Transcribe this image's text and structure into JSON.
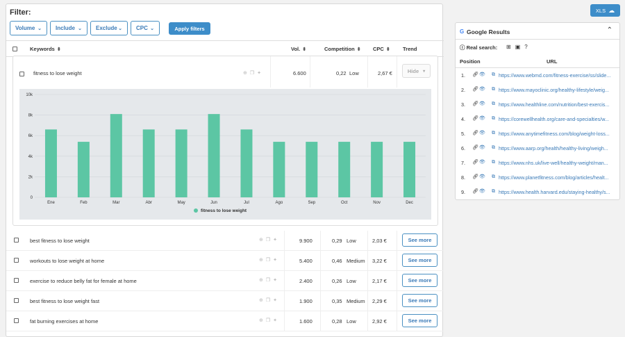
{
  "filter": {
    "title": "Filter:",
    "buttons": [
      "Volume",
      "Include",
      "Exclude",
      "CPC"
    ],
    "apply": "Apply filters"
  },
  "table": {
    "headers": {
      "keywords": "Keywords",
      "vol": "Vol.",
      "competition": "Competition",
      "cpc": "CPC",
      "trend": "Trend"
    }
  },
  "expanded": {
    "keyword": "fitness to lose weight",
    "vol": "6.600",
    "comp_value": "0,22",
    "comp_level": "Low",
    "cpc": "2,67 €",
    "hide": "Hide"
  },
  "chart_data": {
    "type": "bar",
    "categories": [
      "Ene",
      "Feb",
      "Mar",
      "Abr",
      "May",
      "Jun",
      "Jul",
      "Ago",
      "Sep",
      "Oct",
      "Nov",
      "Dec"
    ],
    "series": [
      {
        "name": "fitness to lose weight",
        "values": [
          6600,
          5400,
          8100,
          6600,
          6600,
          8100,
          6600,
          5400,
          5400,
          5400,
          5400,
          5400
        ]
      }
    ],
    "yticks": [
      "10k",
      "8k",
      "6k",
      "4k",
      "2k",
      "0"
    ],
    "ylim": [
      0,
      10000
    ],
    "legend": "bottom",
    "color": "#5cc6a4"
  },
  "rows": [
    {
      "keyword": "best fitness to lose weight",
      "vol": "9.900",
      "comp_value": "0,29",
      "comp_level": "Low",
      "cpc": "2,03 €",
      "action": "See more"
    },
    {
      "keyword": "workouts to lose weight at home",
      "vol": "5.400",
      "comp_value": "0,46",
      "comp_level": "Medium",
      "cpc": "3,22 €",
      "action": "See more"
    },
    {
      "keyword": "exercise to reduce belly fat for female at home",
      "vol": "2.400",
      "comp_value": "0,26",
      "comp_level": "Low",
      "cpc": "2,17 €",
      "action": "See more"
    },
    {
      "keyword": "best fitness to lose weight fast",
      "vol": "1.900",
      "comp_value": "0,35",
      "comp_level": "Medium",
      "cpc": "2,29 €",
      "action": "See more"
    },
    {
      "keyword": "fat burning exercises at home",
      "vol": "1.600",
      "comp_value": "0,28",
      "comp_level": "Low",
      "cpc": "2,92 €",
      "action": "See more"
    }
  ],
  "xls": {
    "label": "XLS"
  },
  "google": {
    "title": "Google Results",
    "real_search": "Real search:",
    "headers": {
      "position": "Position",
      "url": "URL"
    },
    "results": [
      {
        "pos": "1.",
        "url": "https://www.webmd.com/fitness-exercise/ss/slide..."
      },
      {
        "pos": "2.",
        "url": "https://www.mayoclinic.org/healthy-lifestyle/weig..."
      },
      {
        "pos": "3.",
        "url": "https://www.healthline.com/nutrition/best-exercis..."
      },
      {
        "pos": "4.",
        "url": "https://corewellhealth.org/care-and-specialties/w..."
      },
      {
        "pos": "5.",
        "url": "https://www.anytimefitness.com/blog/weight-loss..."
      },
      {
        "pos": "6.",
        "url": "https://www.aarp.org/health/healthy-living/weigh..."
      },
      {
        "pos": "7.",
        "url": "https://www.nhs.uk/live-well/healthy-weight/man..."
      },
      {
        "pos": "8.",
        "url": "https://www.planetfitness.com/blog/articles/healt..."
      },
      {
        "pos": "9.",
        "url": "https://www.health.harvard.edu/staying-healthy/s..."
      }
    ]
  }
}
